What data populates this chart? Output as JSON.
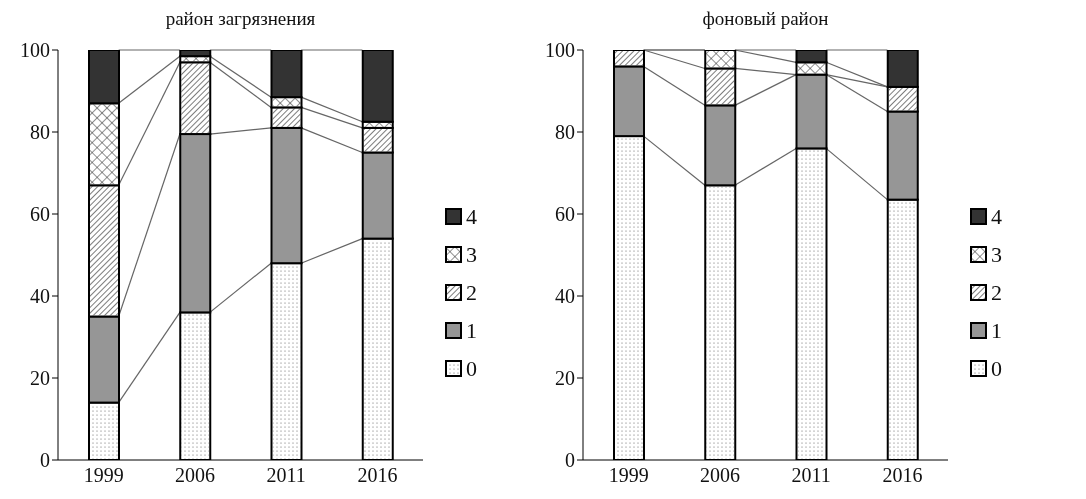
{
  "chart_data": [
    {
      "type": "bar",
      "title": "район загрязнения",
      "categories": [
        "1999",
        "2006",
        "2011",
        "2016"
      ],
      "stacked": true,
      "ylim": [
        0,
        100
      ],
      "yticks": [
        0,
        20,
        40,
        60,
        80,
        100
      ],
      "grid": false,
      "legend": "right",
      "series": [
        {
          "name": "0",
          "color": "#ffffff",
          "values": [
            14,
            36,
            48,
            54
          ]
        },
        {
          "name": "1",
          "color": "#969696",
          "values": [
            21,
            43.5,
            33,
            21
          ]
        },
        {
          "name": "2",
          "color": "#ffffff",
          "values": [
            32,
            17.5,
            5,
            6
          ]
        },
        {
          "name": "3",
          "color": "#ffffff",
          "values": [
            20,
            1.5,
            2.5,
            1.5
          ]
        },
        {
          "name": "4",
          "color": "#333333",
          "values": [
            13,
            1.5,
            11.5,
            17.5
          ]
        }
      ]
    },
    {
      "type": "bar",
      "title": "фоновый район",
      "categories": [
        "1999",
        "2006",
        "2011",
        "2016"
      ],
      "stacked": true,
      "ylim": [
        0,
        100
      ],
      "yticks": [
        0,
        20,
        40,
        60,
        80,
        100
      ],
      "grid": false,
      "legend": "right",
      "series": [
        {
          "name": "0",
          "color": "#ffffff",
          "values": [
            79,
            67,
            76,
            63.5
          ]
        },
        {
          "name": "1",
          "color": "#969696",
          "values": [
            17,
            19.5,
            18,
            21.5
          ]
        },
        {
          "name": "2",
          "color": "#ffffff",
          "values": [
            4,
            9,
            0,
            6
          ]
        },
        {
          "name": "3",
          "color": "#ffffff",
          "values": [
            0,
            4.5,
            3,
            0
          ]
        },
        {
          "name": "4",
          "color": "#333333",
          "values": [
            0,
            0,
            3,
            9
          ]
        }
      ]
    }
  ]
}
